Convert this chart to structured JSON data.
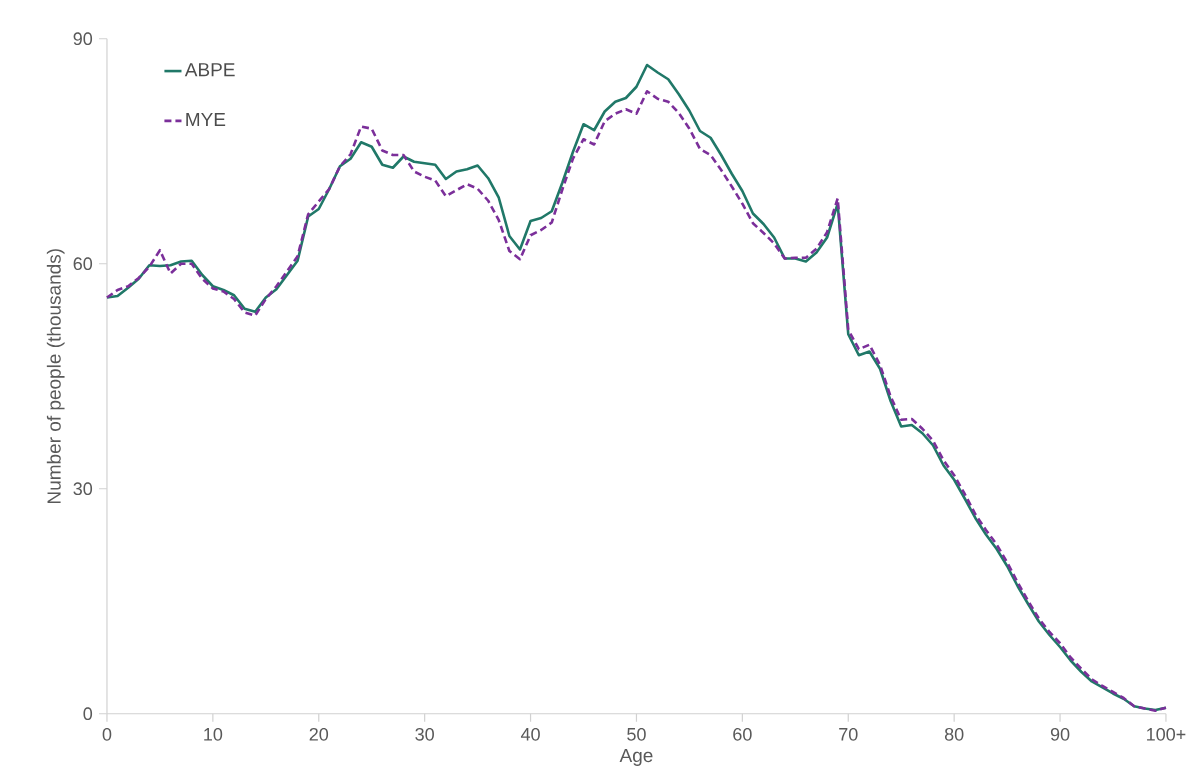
{
  "chart_data": {
    "type": "line",
    "xlabel": "Age",
    "ylabel": "Number of people (thousands)",
    "x": [
      0,
      1,
      2,
      3,
      4,
      5,
      6,
      7,
      8,
      9,
      10,
      11,
      12,
      13,
      14,
      15,
      16,
      17,
      18,
      19,
      20,
      21,
      22,
      23,
      24,
      25,
      26,
      27,
      28,
      29,
      30,
      31,
      32,
      33,
      34,
      35,
      36,
      37,
      38,
      39,
      40,
      41,
      42,
      43,
      44,
      45,
      46,
      47,
      48,
      49,
      50,
      51,
      52,
      53,
      54,
      55,
      56,
      57,
      58,
      59,
      60,
      61,
      62,
      63,
      64,
      65,
      66,
      67,
      68,
      69,
      70,
      71,
      72,
      73,
      74,
      75,
      76,
      77,
      78,
      79,
      80,
      81,
      82,
      83,
      84,
      85,
      86,
      87,
      88,
      89,
      90,
      91,
      92,
      93,
      94,
      95,
      96,
      97,
      98,
      99,
      100
    ],
    "series": [
      {
        "name": "ABPE",
        "color": "#207868",
        "line_style": "solid",
        "values": [
          55.5,
          55.7,
          56.8,
          58.0,
          59.8,
          59.7,
          59.8,
          60.3,
          60.4,
          58.5,
          57.0,
          56.5,
          55.8,
          54.0,
          53.6,
          55.5,
          56.6,
          58.5,
          60.4,
          66.3,
          67.3,
          70.0,
          73.0,
          74.0,
          76.2,
          75.6,
          73.2,
          72.8,
          74.3,
          73.6,
          73.4,
          73.2,
          71.3,
          72.3,
          72.6,
          73.1,
          71.4,
          68.8,
          63.7,
          61.9,
          65.7,
          66.1,
          67.0,
          70.8,
          74.9,
          78.6,
          77.8,
          80.3,
          81.6,
          82.1,
          83.6,
          86.5,
          85.5,
          84.6,
          82.6,
          80.4,
          77.7,
          76.8,
          74.5,
          72.0,
          69.7,
          66.7,
          65.3,
          63.5,
          60.7,
          60.7,
          60.3,
          61.5,
          63.5,
          68.0,
          50.6,
          47.8,
          48.3,
          46.0,
          41.7,
          38.3,
          38.5,
          37.4,
          35.8,
          33.1,
          31.2,
          28.7,
          26.1,
          23.9,
          22.0,
          19.7,
          17.0,
          14.6,
          12.3,
          10.5,
          8.9,
          7.1,
          5.6,
          4.3,
          3.5,
          2.7,
          2.0,
          1.0,
          0.7,
          0.5,
          0.8
        ]
      },
      {
        "name": "MYE",
        "color": "#7b2f9a",
        "line_style": "dashed",
        "values": [
          55.5,
          56.5,
          57.0,
          58.1,
          59.6,
          61.8,
          58.7,
          60.0,
          60.0,
          58.0,
          56.7,
          56.3,
          55.3,
          53.5,
          53.1,
          55.3,
          57.0,
          59.0,
          61.0,
          66.6,
          68.3,
          70.0,
          73.0,
          74.6,
          78.3,
          78.0,
          75.1,
          74.5,
          74.5,
          72.3,
          71.6,
          71.1,
          69.0,
          69.8,
          70.6,
          70.0,
          68.4,
          65.8,
          61.7,
          60.6,
          63.8,
          64.5,
          65.5,
          69.9,
          74.0,
          76.6,
          75.9,
          79.0,
          80.0,
          80.6,
          80.0,
          83.0,
          82.0,
          81.6,
          80.1,
          78.0,
          75.3,
          74.5,
          72.5,
          70.3,
          68.0,
          65.4,
          64.1,
          62.7,
          60.7,
          60.8,
          60.8,
          62.0,
          64.2,
          68.7,
          51.2,
          48.6,
          49.2,
          46.5,
          42.3,
          39.2,
          39.3,
          38.0,
          36.4,
          33.8,
          31.8,
          29.3,
          26.6,
          24.5,
          22.6,
          20.2,
          17.5,
          15.0,
          12.7,
          10.9,
          9.4,
          7.5,
          6.0,
          4.6,
          3.7,
          2.9,
          2.1,
          1.0,
          0.7,
          0.4,
          0.8
        ]
      }
    ],
    "xlim": [
      0,
      100
    ],
    "xticks": [
      0,
      10,
      20,
      30,
      40,
      50,
      60,
      70,
      80,
      90,
      {
        "value": 100,
        "label": "100+"
      }
    ],
    "ylim": [
      0,
      90
    ],
    "yticks": [
      0,
      30,
      60,
      90
    ],
    "legend": "top left"
  }
}
